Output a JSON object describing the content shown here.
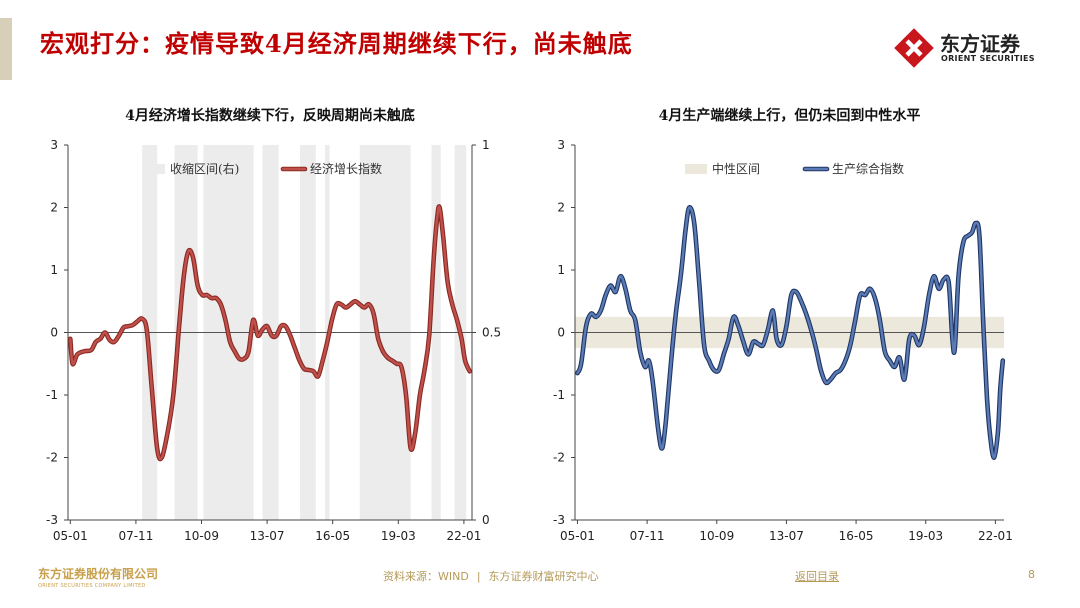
{
  "page": {
    "title": "宏观打分：疫情导致4月经济周期继续下行，尚未触底",
    "logo": {
      "name": "东方证券",
      "en": "ORIENT SECURITIES",
      "icon": "orient-securities-logo-icon"
    },
    "footer": {
      "company_cn": "东方证券股份有限公司",
      "company_en": "ORIENT SECURITIES COMPANY LIMITED",
      "source": "资料来源：WIND",
      "separator": "|",
      "center": "东方证券财富研究中心",
      "link": "返回目录",
      "page_number": "8"
    },
    "colors": {
      "title": "#c00000",
      "footer": "#b59a58",
      "accent_bar": "#d8cfb8"
    }
  },
  "chart_data": [
    {
      "type": "line",
      "title": "4月经济增长指数继续下行，反映周期尚未触底",
      "xlabel": "",
      "ylabel": "",
      "x_ticks": [
        "05-01",
        "07-11",
        "10-09",
        "13-07",
        "16-05",
        "19-03",
        "22-01"
      ],
      "x_tick_positions": [
        2005.0,
        2007.833,
        2010.667,
        2013.5,
        2016.333,
        2019.167,
        2022.0
      ],
      "xlim": [
        2004.9,
        2022.35
      ],
      "ylim": [
        -3,
        3
      ],
      "y_ticks": [
        "3",
        "2",
        "1",
        "0",
        "-1",
        "-2",
        "-3"
      ],
      "y2lim": [
        0,
        1
      ],
      "y2_ticks": [
        "1",
        "0.5",
        "0"
      ],
      "grid": false,
      "legend": "top",
      "series": [
        {
          "name": "收缩区间(右)",
          "kind": "shaded-band",
          "axis": "right",
          "color": "#ececec",
          "intervals": [
            [
              2008.1,
              2008.75
            ],
            [
              2009.5,
              2010.5
            ],
            [
              2010.75,
              2012.92
            ],
            [
              2013.3,
              2014.0
            ],
            [
              2014.92,
              2015.6
            ],
            [
              2016.0,
              2016.2
            ],
            [
              2017.5,
              2019.7
            ],
            [
              2020.6,
              2021.0
            ],
            [
              2021.6,
              2022.1
            ]
          ]
        },
        {
          "name": "经济增长指数",
          "kind": "line",
          "axis": "left",
          "color": "#c0504d",
          "outline": "#8a2a20",
          "points": [
            [
              2005.0,
              -0.1
            ],
            [
              2005.1,
              -0.5
            ],
            [
              2005.3,
              -0.35
            ],
            [
              2005.6,
              -0.3
            ],
            [
              2005.9,
              -0.28
            ],
            [
              2006.1,
              -0.15
            ],
            [
              2006.3,
              -0.1
            ],
            [
              2006.5,
              0.0
            ],
            [
              2006.7,
              -0.12
            ],
            [
              2006.9,
              -0.15
            ],
            [
              2007.1,
              -0.05
            ],
            [
              2007.3,
              0.08
            ],
            [
              2007.5,
              0.1
            ],
            [
              2007.7,
              0.12
            ],
            [
              2007.9,
              0.18
            ],
            [
              2008.1,
              0.22
            ],
            [
              2008.3,
              0.05
            ],
            [
              2008.5,
              -0.8
            ],
            [
              2008.75,
              -1.85
            ],
            [
              2008.95,
              -2.0
            ],
            [
              2009.2,
              -1.6
            ],
            [
              2009.45,
              -1.0
            ],
            [
              2009.7,
              0.1
            ],
            [
              2009.9,
              0.9
            ],
            [
              2010.1,
              1.3
            ],
            [
              2010.3,
              1.2
            ],
            [
              2010.5,
              0.75
            ],
            [
              2010.7,
              0.6
            ],
            [
              2010.9,
              0.6
            ],
            [
              2011.1,
              0.55
            ],
            [
              2011.3,
              0.55
            ],
            [
              2011.5,
              0.45
            ],
            [
              2011.7,
              0.2
            ],
            [
              2011.9,
              -0.15
            ],
            [
              2012.1,
              -0.3
            ],
            [
              2012.3,
              -0.42
            ],
            [
              2012.5,
              -0.42
            ],
            [
              2012.7,
              -0.3
            ],
            [
              2012.9,
              0.2
            ],
            [
              2013.1,
              -0.05
            ],
            [
              2013.3,
              0.05
            ],
            [
              2013.5,
              0.1
            ],
            [
              2013.7,
              -0.05
            ],
            [
              2013.9,
              -0.05
            ],
            [
              2014.1,
              0.1
            ],
            [
              2014.3,
              0.1
            ],
            [
              2014.5,
              -0.05
            ],
            [
              2014.7,
              -0.25
            ],
            [
              2014.9,
              -0.45
            ],
            [
              2015.1,
              -0.58
            ],
            [
              2015.3,
              -0.6
            ],
            [
              2015.5,
              -0.62
            ],
            [
              2015.7,
              -0.7
            ],
            [
              2015.9,
              -0.45
            ],
            [
              2016.1,
              -0.15
            ],
            [
              2016.3,
              0.2
            ],
            [
              2016.5,
              0.45
            ],
            [
              2016.7,
              0.45
            ],
            [
              2016.9,
              0.4
            ],
            [
              2017.1,
              0.45
            ],
            [
              2017.3,
              0.5
            ],
            [
              2017.5,
              0.45
            ],
            [
              2017.7,
              0.4
            ],
            [
              2017.9,
              0.45
            ],
            [
              2018.1,
              0.3
            ],
            [
              2018.3,
              -0.1
            ],
            [
              2018.5,
              -0.3
            ],
            [
              2018.7,
              -0.4
            ],
            [
              2018.9,
              -0.45
            ],
            [
              2019.1,
              -0.5
            ],
            [
              2019.3,
              -0.55
            ],
            [
              2019.5,
              -1.0
            ],
            [
              2019.7,
              -1.85
            ],
            [
              2019.9,
              -1.6
            ],
            [
              2020.1,
              -1.0
            ],
            [
              2020.3,
              -0.6
            ],
            [
              2020.5,
              -0.05
            ],
            [
              2020.7,
              1.2
            ],
            [
              2020.85,
              1.85
            ],
            [
              2020.95,
              2.0
            ],
            [
              2021.1,
              1.55
            ],
            [
              2021.3,
              0.8
            ],
            [
              2021.5,
              0.45
            ],
            [
              2021.7,
              0.2
            ],
            [
              2021.9,
              -0.1
            ],
            [
              2022.05,
              -0.45
            ],
            [
              2022.25,
              -0.62
            ]
          ]
        }
      ]
    },
    {
      "type": "line",
      "title": "4月生产端继续上行，但仍未回到中性水平",
      "xlabel": "",
      "ylabel": "",
      "x_ticks": [
        "05-01",
        "07-11",
        "10-09",
        "13-07",
        "16-05",
        "19-03",
        "22-01"
      ],
      "x_tick_positions": [
        2005.0,
        2007.833,
        2010.667,
        2013.5,
        2016.333,
        2019.167,
        2022.0
      ],
      "xlim": [
        2004.9,
        2022.35
      ],
      "ylim": [
        -3,
        3
      ],
      "y_ticks": [
        "3",
        "2",
        "1",
        "0",
        "-1",
        "-2",
        "-3"
      ],
      "grid": false,
      "legend": "top",
      "series": [
        {
          "name": "中性区间",
          "kind": "band",
          "axis": "left",
          "color": "#ece8dc",
          "range": [
            -0.25,
            0.25
          ]
        },
        {
          "name": "生产综合指数",
          "kind": "line",
          "axis": "left",
          "color": "#5b7bb4",
          "outline": "#1f3565",
          "points": [
            [
              2005.0,
              -0.65
            ],
            [
              2005.15,
              -0.5
            ],
            [
              2005.35,
              0.1
            ],
            [
              2005.55,
              0.3
            ],
            [
              2005.75,
              0.25
            ],
            [
              2005.95,
              0.35
            ],
            [
              2006.15,
              0.6
            ],
            [
              2006.35,
              0.75
            ],
            [
              2006.55,
              0.65
            ],
            [
              2006.75,
              0.9
            ],
            [
              2006.95,
              0.7
            ],
            [
              2007.15,
              0.35
            ],
            [
              2007.35,
              0.2
            ],
            [
              2007.55,
              -0.3
            ],
            [
              2007.75,
              -0.55
            ],
            [
              2007.9,
              -0.45
            ],
            [
              2008.05,
              -0.75
            ],
            [
              2008.3,
              -1.6
            ],
            [
              2008.45,
              -1.85
            ],
            [
              2008.6,
              -1.4
            ],
            [
              2008.8,
              -0.5
            ],
            [
              2009.0,
              0.3
            ],
            [
              2009.2,
              0.9
            ],
            [
              2009.4,
              1.65
            ],
            [
              2009.55,
              2.0
            ],
            [
              2009.75,
              1.75
            ],
            [
              2009.95,
              0.8
            ],
            [
              2010.15,
              -0.2
            ],
            [
              2010.35,
              -0.45
            ],
            [
              2010.55,
              -0.6
            ],
            [
              2010.75,
              -0.6
            ],
            [
              2010.95,
              -0.35
            ],
            [
              2011.15,
              -0.1
            ],
            [
              2011.35,
              0.25
            ],
            [
              2011.55,
              0.1
            ],
            [
              2011.75,
              -0.15
            ],
            [
              2011.95,
              -0.35
            ],
            [
              2012.15,
              -0.15
            ],
            [
              2012.35,
              -0.18
            ],
            [
              2012.55,
              -0.2
            ],
            [
              2012.75,
              0.05
            ],
            [
              2012.95,
              0.35
            ],
            [
              2013.1,
              -0.1
            ],
            [
              2013.3,
              -0.2
            ],
            [
              2013.5,
              0.1
            ],
            [
              2013.7,
              0.6
            ],
            [
              2013.9,
              0.65
            ],
            [
              2014.1,
              0.5
            ],
            [
              2014.3,
              0.3
            ],
            [
              2014.5,
              0.05
            ],
            [
              2014.7,
              -0.25
            ],
            [
              2014.9,
              -0.6
            ],
            [
              2015.1,
              -0.8
            ],
            [
              2015.3,
              -0.75
            ],
            [
              2015.5,
              -0.65
            ],
            [
              2015.7,
              -0.6
            ],
            [
              2015.9,
              -0.45
            ],
            [
              2016.1,
              -0.2
            ],
            [
              2016.3,
              0.2
            ],
            [
              2016.5,
              0.6
            ],
            [
              2016.7,
              0.6
            ],
            [
              2016.9,
              0.7
            ],
            [
              2017.1,
              0.55
            ],
            [
              2017.3,
              0.2
            ],
            [
              2017.5,
              -0.3
            ],
            [
              2017.7,
              -0.45
            ],
            [
              2017.9,
              -0.55
            ],
            [
              2018.1,
              -0.4
            ],
            [
              2018.3,
              -0.75
            ],
            [
              2018.5,
              -0.1
            ],
            [
              2018.7,
              -0.05
            ],
            [
              2018.9,
              -0.2
            ],
            [
              2019.1,
              0.1
            ],
            [
              2019.3,
              0.6
            ],
            [
              2019.5,
              0.9
            ],
            [
              2019.7,
              0.7
            ],
            [
              2019.9,
              0.85
            ],
            [
              2020.1,
              0.8
            ],
            [
              2020.25,
              -0.1
            ],
            [
              2020.35,
              -0.25
            ],
            [
              2020.5,
              0.9
            ],
            [
              2020.7,
              1.45
            ],
            [
              2020.9,
              1.55
            ],
            [
              2021.05,
              1.6
            ],
            [
              2021.2,
              1.75
            ],
            [
              2021.35,
              1.55
            ],
            [
              2021.5,
              0.2
            ],
            [
              2021.65,
              -1.0
            ],
            [
              2021.8,
              -1.7
            ],
            [
              2021.95,
              -2.0
            ],
            [
              2022.1,
              -1.6
            ],
            [
              2022.2,
              -0.9
            ],
            [
              2022.3,
              -0.45
            ]
          ]
        }
      ]
    }
  ]
}
